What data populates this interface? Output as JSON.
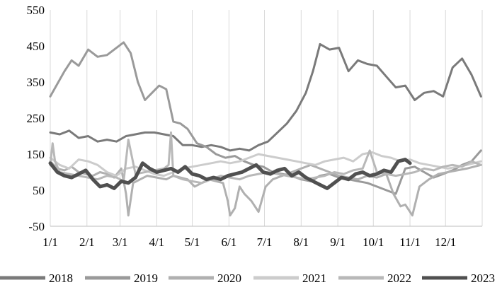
{
  "chart_data": {
    "type": "line",
    "title": "",
    "xlabel": "",
    "ylabel": "",
    "ylim": [
      -50,
      550
    ],
    "y_ticks": [
      "550",
      "450",
      "350",
      "250",
      "150",
      "50",
      "-50"
    ],
    "y_tick_values": [
      550,
      450,
      350,
      250,
      150,
      50,
      -50
    ],
    "x_ticks": [
      "1/1",
      "2/1",
      "3/1",
      "4/1",
      "5/1",
      "6/1",
      "7/1",
      "8/1",
      "9/1",
      "10/1",
      "11/1",
      "12/1"
    ],
    "x_tick_days": [
      0,
      31,
      59,
      90,
      120,
      151,
      181,
      212,
      243,
      273,
      304,
      334
    ],
    "x_days_in_year": 365,
    "grid": "vertical",
    "legend_position": "bottom",
    "series": [
      {
        "name": "2018",
        "color": "#7a7a7a",
        "width": 3,
        "x": [
          0,
          8,
          16,
          24,
          32,
          40,
          48,
          56,
          64,
          72,
          80,
          88,
          96,
          104,
          112,
          120,
          128,
          136,
          144,
          152,
          160,
          168,
          176,
          184,
          192,
          200,
          208,
          216,
          222,
          228,
          236,
          244,
          252,
          260,
          268,
          276,
          284,
          292,
          300,
          308,
          316,
          324,
          332,
          340,
          348,
          356,
          364
        ],
        "y": [
          210,
          205,
          215,
          195,
          200,
          185,
          190,
          185,
          200,
          205,
          210,
          210,
          205,
          200,
          175,
          175,
          170,
          175,
          170,
          160,
          165,
          160,
          175,
          185,
          210,
          235,
          270,
          320,
          380,
          455,
          440,
          445,
          380,
          410,
          400,
          395,
          365,
          335,
          340,
          300,
          320,
          325,
          310,
          390,
          415,
          370,
          310
        ]
      },
      {
        "name": "2019",
        "color": "#9a9a9a",
        "width": 3,
        "x": [
          0,
          6,
          12,
          18,
          24,
          32,
          40,
          48,
          56,
          62,
          68,
          74,
          80,
          86,
          92,
          98,
          104,
          110,
          116,
          124,
          132,
          140,
          148,
          156,
          164,
          172,
          180,
          188,
          196,
          204,
          212,
          220,
          228,
          236,
          244,
          252,
          260,
          268,
          276,
          284,
          292,
          300,
          308,
          316,
          324,
          332,
          340,
          348,
          356,
          364
        ],
        "y": [
          310,
          345,
          380,
          410,
          395,
          440,
          420,
          425,
          445,
          460,
          430,
          350,
          300,
          320,
          340,
          330,
          240,
          235,
          220,
          180,
          170,
          150,
          140,
          145,
          130,
          120,
          115,
          100,
          95,
          90,
          80,
          75,
          90,
          95,
          85,
          80,
          75,
          70,
          60,
          50,
          40,
          110,
          115,
          100,
          85,
          95,
          105,
          120,
          130,
          160
        ]
      },
      {
        "name": "2020",
        "color": "#b0b0b0",
        "width": 3,
        "x": [
          0,
          6,
          12,
          18,
          24,
          30,
          36,
          42,
          48,
          54,
          60,
          64,
          66,
          70,
          76,
          82,
          90,
          98,
          104,
          110,
          116,
          122,
          128,
          134,
          140,
          146,
          150,
          152,
          156,
          160,
          164,
          170,
          176,
          182,
          188,
          196,
          204,
          212,
          220,
          228,
          236,
          244,
          252,
          260,
          268,
          276,
          284,
          290,
          296,
          300,
          306,
          312,
          320,
          328,
          336,
          344,
          352,
          358,
          364
        ],
        "y": [
          130,
          110,
          105,
          115,
          100,
          95,
          90,
          100,
          95,
          85,
          110,
          40,
          -20,
          70,
          80,
          90,
          85,
          80,
          90,
          85,
          80,
          60,
          70,
          80,
          75,
          70,
          20,
          -20,
          0,
          60,
          40,
          20,
          -10,
          60,
          80,
          90,
          100,
          110,
          120,
          110,
          100,
          90,
          85,
          80,
          90,
          85,
          95,
          40,
          5,
          10,
          -20,
          60,
          80,
          95,
          100,
          105,
          110,
          115,
          120
        ]
      },
      {
        "name": "2021",
        "color": "#cccccc",
        "width": 3,
        "x": [
          0,
          8,
          16,
          24,
          32,
          40,
          48,
          56,
          64,
          72,
          80,
          88,
          96,
          104,
          112,
          120,
          128,
          136,
          144,
          152,
          160,
          168,
          176,
          184,
          192,
          200,
          208,
          216,
          224,
          232,
          240,
          248,
          256,
          264,
          272,
          280,
          288,
          296,
          304,
          312,
          320,
          328,
          336,
          344,
          352,
          358,
          364
        ],
        "y": [
          140,
          120,
          110,
          135,
          130,
          120,
          100,
          90,
          110,
          115,
          105,
          95,
          90,
          100,
          110,
          115,
          120,
          125,
          130,
          125,
          130,
          140,
          150,
          145,
          140,
          135,
          130,
          125,
          120,
          130,
          135,
          140,
          130,
          150,
          155,
          145,
          140,
          130,
          135,
          125,
          120,
          115,
          110,
          115,
          120,
          125,
          130
        ]
      },
      {
        "name": "2022",
        "color": "#b8b8b8",
        "width": 3,
        "x": [
          0,
          2,
          4,
          8,
          16,
          24,
          32,
          40,
          48,
          56,
          62,
          66,
          72,
          80,
          88,
          96,
          100,
          102,
          104,
          112,
          120,
          128,
          136,
          144,
          152,
          160,
          168,
          176,
          184,
          192,
          200,
          208,
          216,
          224,
          232,
          240,
          248,
          256,
          264,
          270,
          276,
          284,
          292,
          300,
          308,
          316,
          324,
          332,
          340,
          348,
          356,
          364
        ],
        "y": [
          120,
          180,
          130,
          100,
          95,
          90,
          85,
          80,
          90,
          85,
          75,
          190,
          95,
          100,
          105,
          110,
          120,
          210,
          90,
          80,
          75,
          70,
          80,
          90,
          85,
          80,
          90,
          95,
          100,
          95,
          90,
          85,
          80,
          85,
          90,
          100,
          95,
          105,
          110,
          160,
          100,
          95,
          90,
          95,
          100,
          110,
          105,
          115,
          120,
          115,
          130,
          120
        ]
      },
      {
        "name": "2023",
        "color": "#505050",
        "width": 5,
        "x": [
          0,
          6,
          12,
          18,
          24,
          30,
          36,
          42,
          48,
          54,
          60,
          66,
          72,
          78,
          84,
          90,
          96,
          102,
          108,
          114,
          120,
          126,
          132,
          138,
          144,
          150,
          156,
          162,
          168,
          174,
          180,
          186,
          192,
          198,
          204,
          210,
          216,
          222,
          228,
          234,
          240,
          246,
          252,
          258,
          264,
          270,
          276,
          282,
          288,
          294,
          300,
          304
        ],
        "y": [
          125,
          100,
          90,
          85,
          95,
          105,
          80,
          60,
          65,
          55,
          75,
          70,
          85,
          125,
          110,
          100,
          105,
          110,
          100,
          115,
          95,
          90,
          80,
          85,
          80,
          90,
          95,
          100,
          110,
          120,
          100,
          95,
          105,
          110,
          90,
          100,
          85,
          75,
          65,
          55,
          70,
          85,
          80,
          95,
          100,
          90,
          95,
          105,
          100,
          130,
          135,
          125
        ]
      }
    ]
  }
}
